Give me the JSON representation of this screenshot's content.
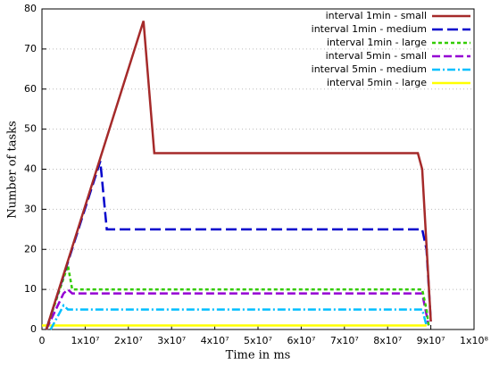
{
  "chart_data": {
    "type": "line",
    "xlabel": "Time in ms",
    "ylabel": "Number of tasks",
    "xlim": [
      0,
      100000000
    ],
    "ylim": [
      0,
      80
    ],
    "xticks": [
      0,
      {
        "value": 10000000,
        "label": "1x10⁷"
      },
      {
        "value": 20000000,
        "label": "2x10⁷"
      },
      {
        "value": 30000000,
        "label": "3x10⁷"
      },
      {
        "value": 40000000,
        "label": "4x10⁷"
      },
      {
        "value": 50000000,
        "label": "5x10⁷"
      },
      {
        "value": 60000000,
        "label": "6x10⁷"
      },
      {
        "value": 70000000,
        "label": "7x10⁷"
      },
      {
        "value": 80000000,
        "label": "8x10⁷"
      },
      {
        "value": 90000000,
        "label": "9x10⁷"
      },
      {
        "value": 100000000,
        "label": "1x10⁸"
      }
    ],
    "yticks": [
      0,
      10,
      20,
      30,
      40,
      50,
      60,
      70,
      80
    ],
    "grid": true,
    "legend": "top-right",
    "series": [
      {
        "name": "interval 1min - small",
        "color": "#a52a2a",
        "x": [
          1000000,
          23500000,
          26000000,
          87000000,
          88000000,
          90000000
        ],
        "values": [
          0,
          77,
          44,
          44,
          40,
          2
        ]
      },
      {
        "name": "interval 1min - medium",
        "color": "#0000cc",
        "x": [
          1000000,
          13500000,
          15000000,
          88000000,
          89000000,
          90000000
        ],
        "values": [
          0,
          42,
          25,
          25,
          20,
          2
        ]
      },
      {
        "name": "interval 1min - large",
        "color": "#33cc00",
        "x": [
          1000000,
          6000000,
          7000000,
          88000000,
          89000000,
          89500000
        ],
        "values": [
          0,
          16,
          10,
          10,
          5,
          1
        ]
      },
      {
        "name": "interval 5min - small",
        "color": "#9400d3",
        "x": [
          1000000,
          5000000,
          6000000,
          7000000,
          88000000,
          89500000
        ],
        "values": [
          0,
          9,
          10,
          9,
          9,
          1
        ]
      },
      {
        "name": "interval 5min - medium",
        "color": "#00bfff",
        "x": [
          2000000,
          5000000,
          6000000,
          88000000,
          89000000
        ],
        "values": [
          0,
          6,
          5,
          5,
          1
        ]
      },
      {
        "name": "interval 5min - large",
        "color": "#ffff00",
        "x": [
          0,
          89000000
        ],
        "values": [
          1,
          1
        ]
      }
    ]
  }
}
